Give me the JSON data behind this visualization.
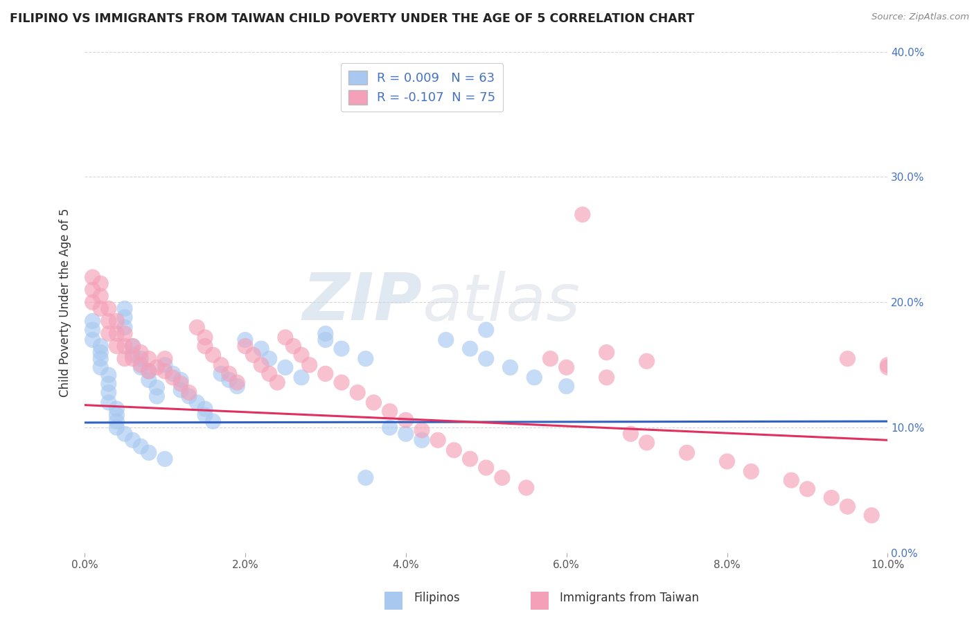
{
  "title": "FILIPINO VS IMMIGRANTS FROM TAIWAN CHILD POVERTY UNDER THE AGE OF 5 CORRELATION CHART",
  "source": "Source: ZipAtlas.com",
  "ylabel": "Child Poverty Under the Age of 5",
  "xlabel": "",
  "xlim": [
    0.0,
    0.1
  ],
  "ylim": [
    0.0,
    0.4
  ],
  "xticks": [
    0.0,
    0.02,
    0.04,
    0.06,
    0.08,
    0.1
  ],
  "yticks": [
    0.0,
    0.1,
    0.2,
    0.3,
    0.4
  ],
  "series1_name": "Filipinos",
  "series1_color": "#a8c8f0",
  "series1_R": "0.009",
  "series1_N": "63",
  "series1_trend_y0": 0.104,
  "series1_trend_y1": 0.105,
  "series2_name": "Immigrants from Taiwan",
  "series2_color": "#f4a0b8",
  "series2_R": "-0.107",
  "series2_N": "75",
  "series2_trend_y0": 0.118,
  "series2_trend_y1": 0.09,
  "watermark_zip": "ZIP",
  "watermark_atlas": "atlas",
  "background_color": "#ffffff",
  "title_color": "#333333",
  "filipinos_x": [
    0.001,
    0.001,
    0.001,
    0.002,
    0.002,
    0.002,
    0.002,
    0.003,
    0.003,
    0.003,
    0.003,
    0.004,
    0.004,
    0.004,
    0.004,
    0.005,
    0.005,
    0.005,
    0.005,
    0.006,
    0.006,
    0.006,
    0.007,
    0.007,
    0.007,
    0.008,
    0.008,
    0.008,
    0.009,
    0.009,
    0.01,
    0.01,
    0.011,
    0.012,
    0.012,
    0.013,
    0.014,
    0.015,
    0.015,
    0.016,
    0.017,
    0.018,
    0.019,
    0.02,
    0.022,
    0.023,
    0.025,
    0.027,
    0.03,
    0.032,
    0.035,
    0.038,
    0.04,
    0.042,
    0.045,
    0.048,
    0.05,
    0.053,
    0.056,
    0.06,
    0.03,
    0.05,
    0.035
  ],
  "filipinos_y": [
    0.185,
    0.178,
    0.17,
    0.165,
    0.16,
    0.155,
    0.148,
    0.142,
    0.135,
    0.128,
    0.12,
    0.115,
    0.11,
    0.105,
    0.1,
    0.195,
    0.188,
    0.18,
    0.095,
    0.165,
    0.158,
    0.09,
    0.155,
    0.148,
    0.085,
    0.145,
    0.138,
    0.08,
    0.132,
    0.125,
    0.15,
    0.075,
    0.143,
    0.138,
    0.13,
    0.125,
    0.12,
    0.115,
    0.11,
    0.105,
    0.143,
    0.138,
    0.133,
    0.17,
    0.163,
    0.155,
    0.148,
    0.14,
    0.17,
    0.163,
    0.155,
    0.1,
    0.095,
    0.09,
    0.17,
    0.163,
    0.155,
    0.148,
    0.14,
    0.133,
    0.175,
    0.178,
    0.06
  ],
  "taiwan_x": [
    0.001,
    0.001,
    0.001,
    0.002,
    0.002,
    0.002,
    0.003,
    0.003,
    0.003,
    0.004,
    0.004,
    0.004,
    0.005,
    0.005,
    0.005,
    0.006,
    0.006,
    0.007,
    0.007,
    0.008,
    0.008,
    0.009,
    0.01,
    0.01,
    0.011,
    0.012,
    0.013,
    0.014,
    0.015,
    0.015,
    0.016,
    0.017,
    0.018,
    0.019,
    0.02,
    0.021,
    0.022,
    0.023,
    0.024,
    0.025,
    0.026,
    0.027,
    0.028,
    0.03,
    0.032,
    0.034,
    0.036,
    0.038,
    0.04,
    0.042,
    0.044,
    0.046,
    0.048,
    0.05,
    0.052,
    0.055,
    0.058,
    0.06,
    0.065,
    0.068,
    0.07,
    0.075,
    0.08,
    0.083,
    0.088,
    0.09,
    0.093,
    0.095,
    0.098,
    0.1,
    0.062,
    0.065,
    0.07,
    0.095,
    0.1
  ],
  "taiwan_y": [
    0.22,
    0.21,
    0.2,
    0.215,
    0.205,
    0.195,
    0.195,
    0.185,
    0.175,
    0.185,
    0.175,
    0.165,
    0.175,
    0.165,
    0.155,
    0.165,
    0.155,
    0.16,
    0.15,
    0.155,
    0.145,
    0.148,
    0.155,
    0.145,
    0.14,
    0.135,
    0.128,
    0.18,
    0.172,
    0.165,
    0.158,
    0.15,
    0.143,
    0.136,
    0.165,
    0.158,
    0.15,
    0.143,
    0.136,
    0.172,
    0.165,
    0.158,
    0.15,
    0.143,
    0.136,
    0.128,
    0.12,
    0.113,
    0.106,
    0.098,
    0.09,
    0.082,
    0.075,
    0.068,
    0.06,
    0.052,
    0.155,
    0.148,
    0.14,
    0.095,
    0.088,
    0.08,
    0.073,
    0.065,
    0.058,
    0.051,
    0.044,
    0.037,
    0.03,
    0.15,
    0.27,
    0.16,
    0.153,
    0.155,
    0.148
  ]
}
